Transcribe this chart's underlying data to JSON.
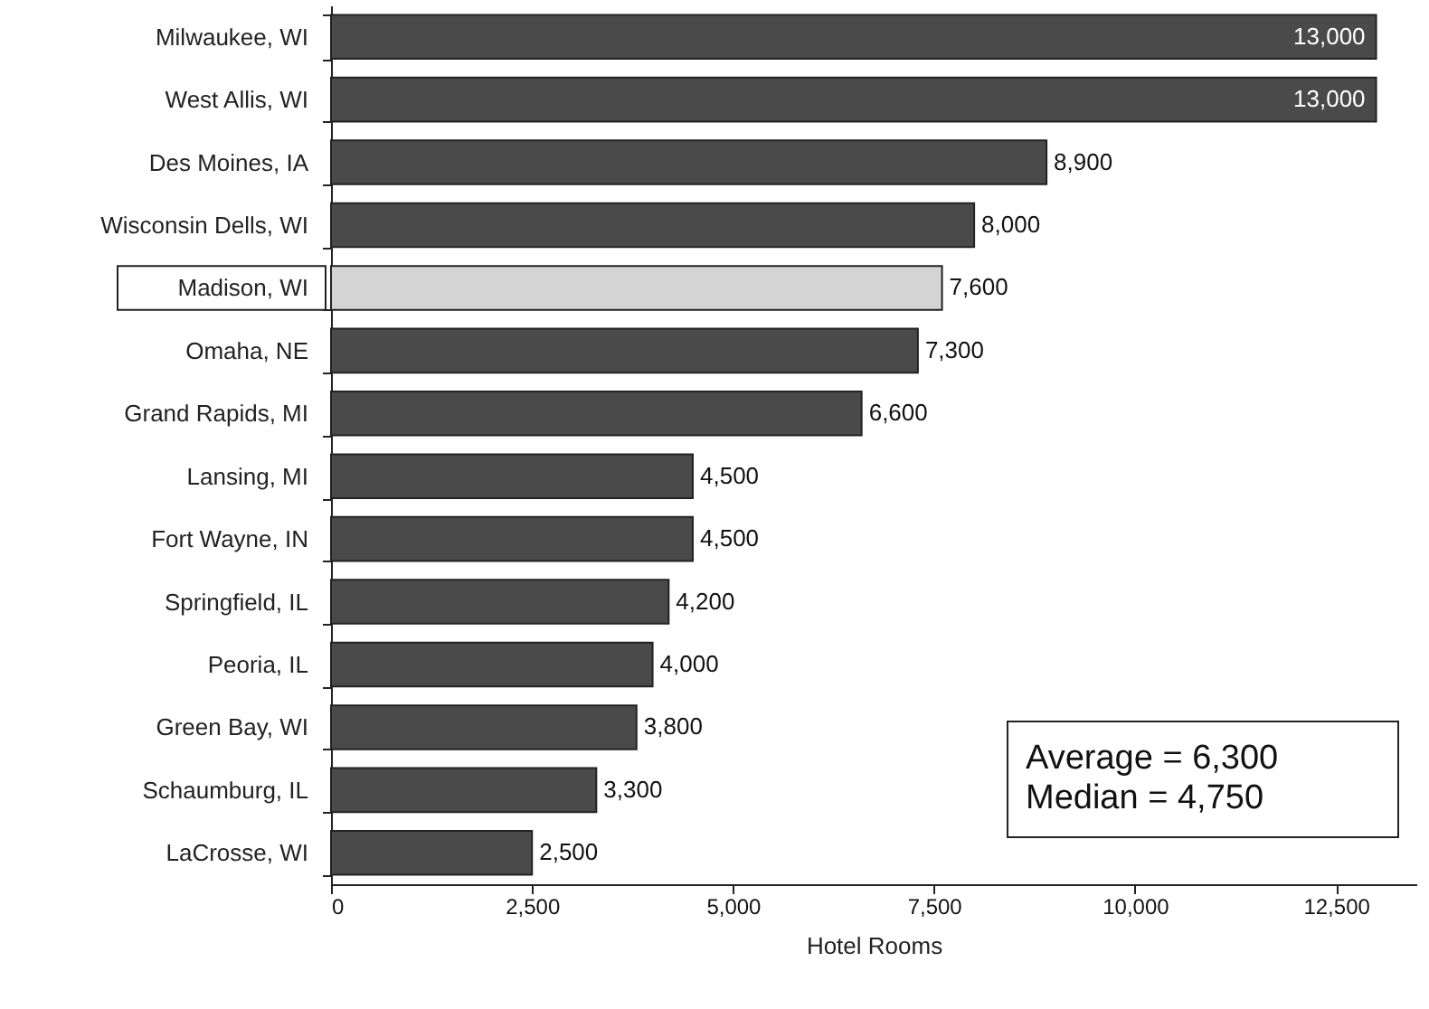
{
  "chart_data": {
    "type": "bar",
    "orientation": "horizontal",
    "xlabel": "Hotel Rooms",
    "categories": [
      "Milwaukee, WI",
      "West Allis, WI",
      "Des Moines, IA",
      "Wisconsin Dells, WI",
      "Madison, WI",
      "Omaha, NE",
      "Grand Rapids, MI",
      "Lansing, MI",
      "Fort Wayne, IN",
      "Springfield, IL",
      "Peoria, IL",
      "Green Bay, WI",
      "Schaumburg, IL",
      "LaCrosse, WI"
    ],
    "values": [
      13000,
      13000,
      8900,
      8000,
      7600,
      7300,
      6600,
      4500,
      4500,
      4200,
      4000,
      3800,
      3300,
      2500
    ],
    "colors": [
      "#4a4a4a",
      "#4a4a4a",
      "#4a4a4a",
      "#4a4a4a",
      "#d4d4d4",
      "#4a4a4a",
      "#4a4a4a",
      "#4a4a4a",
      "#4a4a4a",
      "#4a4a4a",
      "#4a4a4a",
      "#4a4a4a",
      "#4a4a4a",
      "#4a4a4a"
    ],
    "xlim": [
      0,
      13500
    ],
    "xticks": [
      0,
      {
        "value": 2500,
        "label": "2,500"
      },
      {
        "value": 5000,
        "label": "5,000"
      },
      {
        "value": 7500,
        "label": "7,500"
      },
      {
        "value": 10000,
        "label": "10,000"
      },
      {
        "value": 12500,
        "label": "12,500"
      }
    ],
    "value_labels": [
      "13,000",
      "13,000",
      "8,900",
      "8,000",
      "7,600",
      "7,300",
      "6,600",
      "4,500",
      "4,500",
      "4,200",
      "4,000",
      "3,800",
      "3,300",
      "2,500"
    ],
    "grid": false,
    "annotations": [
      "Average = 6,300",
      "Median = 4,750"
    ]
  }
}
